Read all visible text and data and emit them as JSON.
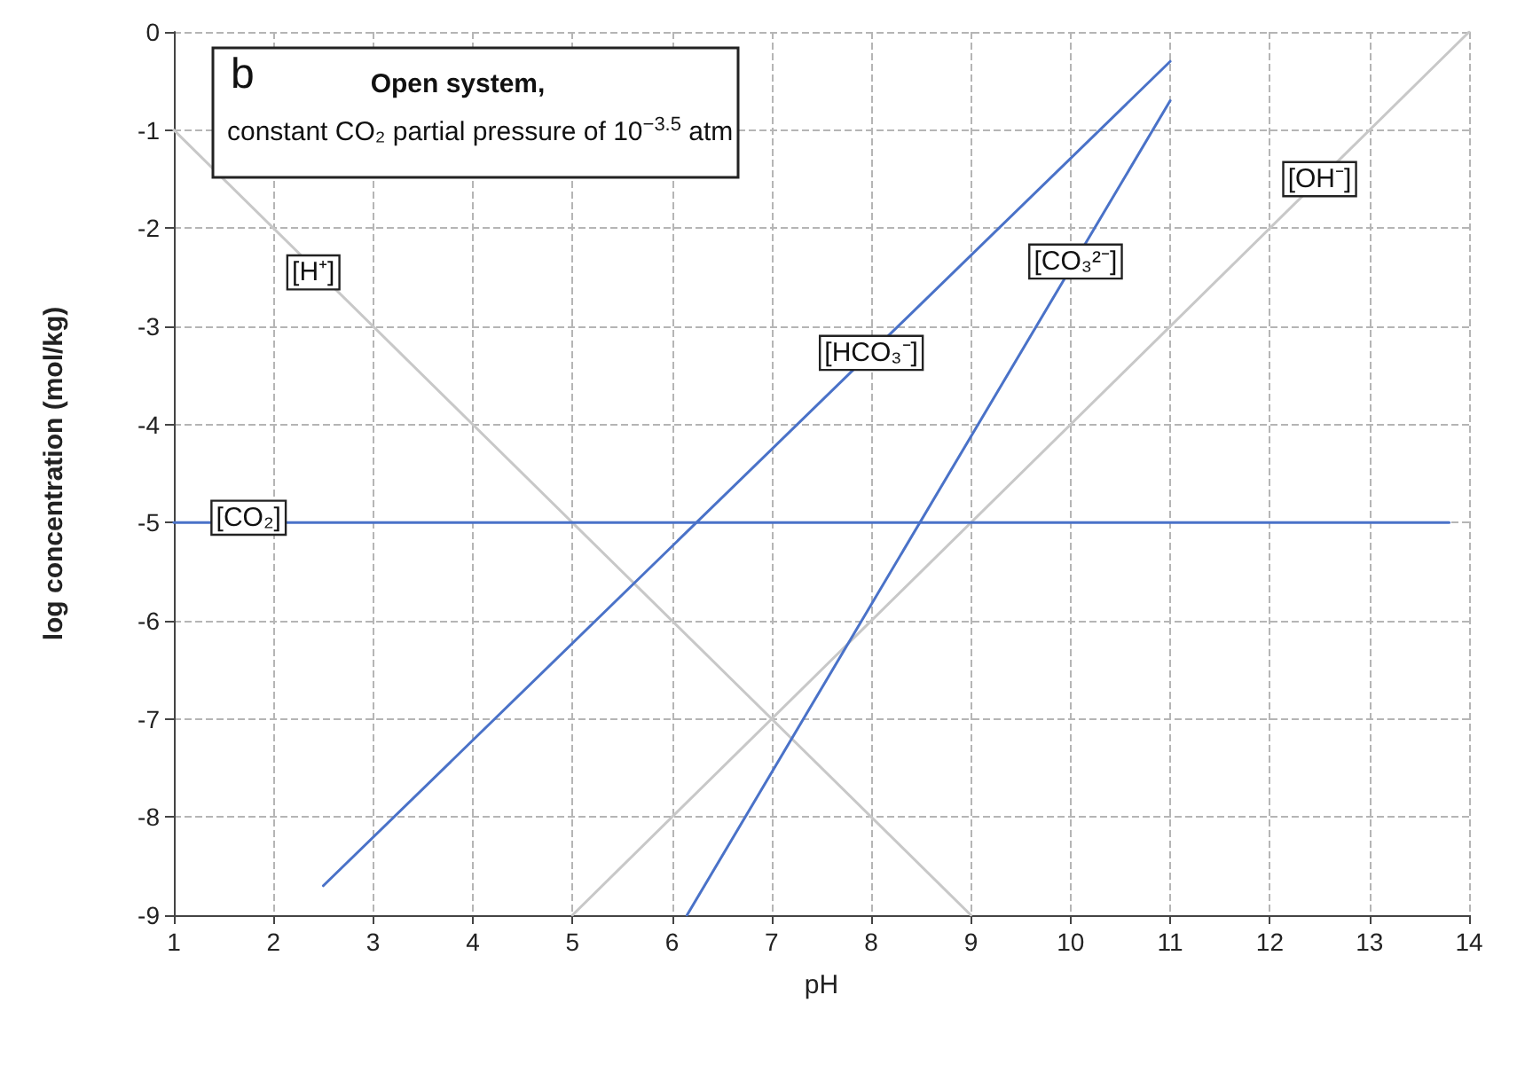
{
  "chart_data": {
    "type": "line",
    "title": "Open system,",
    "subtitle": "constant CO₂ partial pressure of 10$^{−3.5}$ atm",
    "xlabel": "pH",
    "ylabel": "log concentration (mol/kg)",
    "xlim": [
      1,
      14
    ],
    "ylim": [
      -9,
      0
    ],
    "xticks": [
      1,
      2,
      3,
      4,
      5,
      6,
      7,
      8,
      9,
      10,
      11,
      12,
      13,
      14
    ],
    "yticks": [
      -9,
      -8,
      -7,
      -6,
      -5,
      -4,
      -3,
      -2,
      -1,
      0
    ],
    "grid": true,
    "line_style": "solid",
    "marker": "none",
    "series": [
      {
        "color": "#c8c8c8",
        "x": [
          1,
          9
        ],
        "values": [
          -1,
          -9
        ]
      },
      {
        "color": "#c8c8c8",
        "x": [
          5,
          14
        ],
        "values": [
          -9,
          0
        ]
      },
      {
        "color": "#4a72c8",
        "x": [
          1,
          13.8
        ],
        "values": [
          -5,
          -5
        ]
      },
      {
        "color": "#4a72c8",
        "x": [
          2.5,
          11
        ],
        "values": [
          -8.7,
          -0.3
        ]
      },
      {
        "color": "#4a72c8",
        "x": [
          6.15,
          11
        ],
        "values": [
          -9,
          -0.7
        ]
      }
    ],
    "annotations": [
      "b",
      {
        "text": "[H⁺]",
        "x": 2.4,
        "y": -2.45
      },
      {
        "text": "[CO₂]",
        "x": 1.75,
        "y": -4.95
      },
      {
        "text": "[HCO₃⁻]",
        "x": 8.0,
        "y": -3.27
      },
      {
        "text": "[CO₃²⁻]",
        "x": 10.05,
        "y": -2.34
      },
      {
        "text": "[OH⁻]",
        "x": 12.5,
        "y": -1.5
      }
    ]
  }
}
